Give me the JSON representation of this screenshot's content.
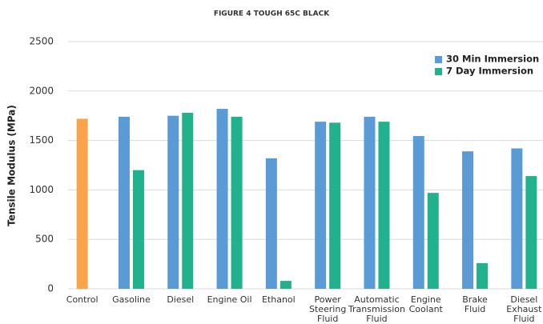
{
  "chart_data": {
    "type": "bar",
    "title": "FIGURE 4 TOUGH 65C BLACK",
    "y_label": "Tensile Modulus (MPa)",
    "categories": [
      "Control",
      "Gasoline",
      "Diesel",
      "Engine Oil",
      "Ethanol",
      "Power\nSteering\nFluid",
      "Automatic\nTransmission\nFluid",
      "Engine\nCoolant",
      "Brake\nFluid",
      "Diesel\nExhaust\nFluid"
    ],
    "series": [
      {
        "name": "30 Min Immersion",
        "color": "#5b9bd5",
        "values": [
          1720,
          1740,
          1750,
          1820,
          1320,
          1690,
          1740,
          1545,
          1390,
          1420
        ]
      },
      {
        "name": "7 Day Immersion",
        "color": "#21b18c",
        "values": [
          null,
          1200,
          1780,
          1740,
          80,
          1680,
          1690,
          970,
          260,
          1140
        ]
      }
    ],
    "control_color": "#f9a34a",
    "ylim": [
      0,
      2500
    ],
    "yticks": [
      0,
      500,
      1000,
      1500,
      2000,
      2500
    ],
    "grid": true,
    "legend": "top-right"
  }
}
